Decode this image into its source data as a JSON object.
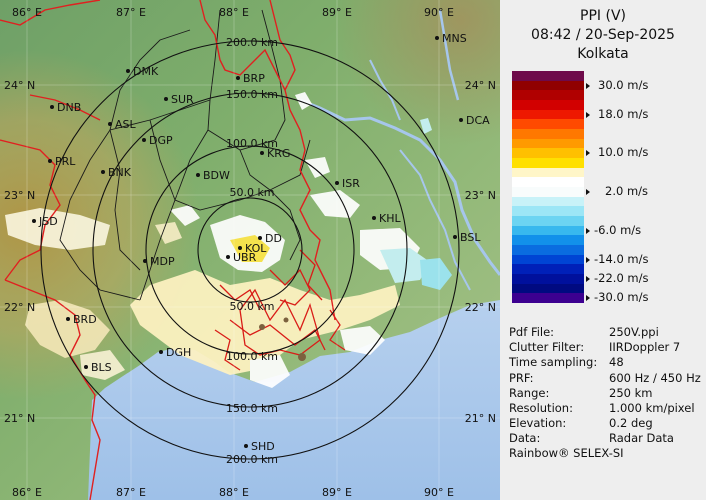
{
  "header": {
    "product": "PPI (V)",
    "datetime": "08:42 / 20-Sep-2025",
    "station": "Kolkata"
  },
  "colorbar": {
    "colors": [
      "#6e0a4a",
      "#900000",
      "#b00000",
      "#d20000",
      "#ee1800",
      "#ff4a00",
      "#ff7800",
      "#ff9a00",
      "#ffc000",
      "#ffe000",
      "#fff6c8",
      "#ffffff",
      "#f8fcfc",
      "#c8f2f8",
      "#9ce6f6",
      "#6cd4f2",
      "#38b8ee",
      "#1290ea",
      "#0a6ce0",
      "#0044d4",
      "#0020b8",
      "#00109c",
      "#000a80",
      "#3c0090"
    ],
    "ticks": [
      {
        "label": "30.0 m/s",
        "index": 1
      },
      {
        "label": "18.0 m/s",
        "index": 4
      },
      {
        "label": "10.0 m/s",
        "index": 8
      },
      {
        "label": "2.0 m/s",
        "index": 12
      },
      {
        "label": "-6.0 m/s",
        "index": 16
      },
      {
        "label": "-14.0 m/s",
        "index": 19
      },
      {
        "label": "-22.0 m/s",
        "index": 21
      },
      {
        "label": "-30.0 m/s",
        "index": 23
      }
    ]
  },
  "metadata": [
    {
      "key": "Pdf File:",
      "value": "250V.ppi"
    },
    {
      "key": "Clutter Filter:",
      "value": "IIRDoppler 7"
    },
    {
      "key": "Time sampling:",
      "value": "48"
    },
    {
      "key": "PRF:",
      "value": "600 Hz / 450 Hz"
    },
    {
      "key": "Range:",
      "value": "250 km"
    },
    {
      "key": "Resolution:",
      "value": "1.000 km/pixel"
    },
    {
      "key": "Elevation:",
      "value": "0.2 deg"
    },
    {
      "key": "Data:",
      "value": "Radar Data"
    }
  ],
  "footer": "Rainbow® SELEX-SI",
  "map": {
    "lon_labels_top": [
      "86° E",
      "87° E",
      "88° E",
      "89° E",
      "90° E"
    ],
    "lon_labels_bottom": [
      "86° E",
      "87° E",
      "88° E",
      "89° E",
      "90° E"
    ],
    "lat_labels_left": [
      "24° N",
      "23° N",
      "22° N",
      "21° N"
    ],
    "lat_labels_right": [
      "24° N",
      "23° N",
      "22° N",
      "21° N"
    ],
    "range_rings": [
      "50.0 km",
      "100.0 km",
      "150.0 km",
      "200.0 km"
    ],
    "range_labels_top": [
      "200.0 km",
      "150.0 km",
      "100.0 km",
      "50.0 km"
    ],
    "range_labels_bottom": [
      "50.0 km",
      "100.0 km",
      "150.0 km",
      "200.0 km"
    ],
    "cities": [
      {
        "code": "MNS"
      },
      {
        "code": "DMK"
      },
      {
        "code": "BRP"
      },
      {
        "code": "DNB"
      },
      {
        "code": "SUR"
      },
      {
        "code": "DCA"
      },
      {
        "code": "ASL"
      },
      {
        "code": "DGP"
      },
      {
        "code": "KRG"
      },
      {
        "code": "PRL"
      },
      {
        "code": "BNK"
      },
      {
        "code": "BDW"
      },
      {
        "code": "ISR"
      },
      {
        "code": "KHL"
      },
      {
        "code": "JSD"
      },
      {
        "code": "BSL"
      },
      {
        "code": "DD"
      },
      {
        "code": "KOL"
      },
      {
        "code": "MDP"
      },
      {
        "code": "UBR"
      },
      {
        "code": "BRD"
      },
      {
        "code": "DGH"
      },
      {
        "code": "BLS"
      },
      {
        "code": "SHD"
      }
    ]
  }
}
